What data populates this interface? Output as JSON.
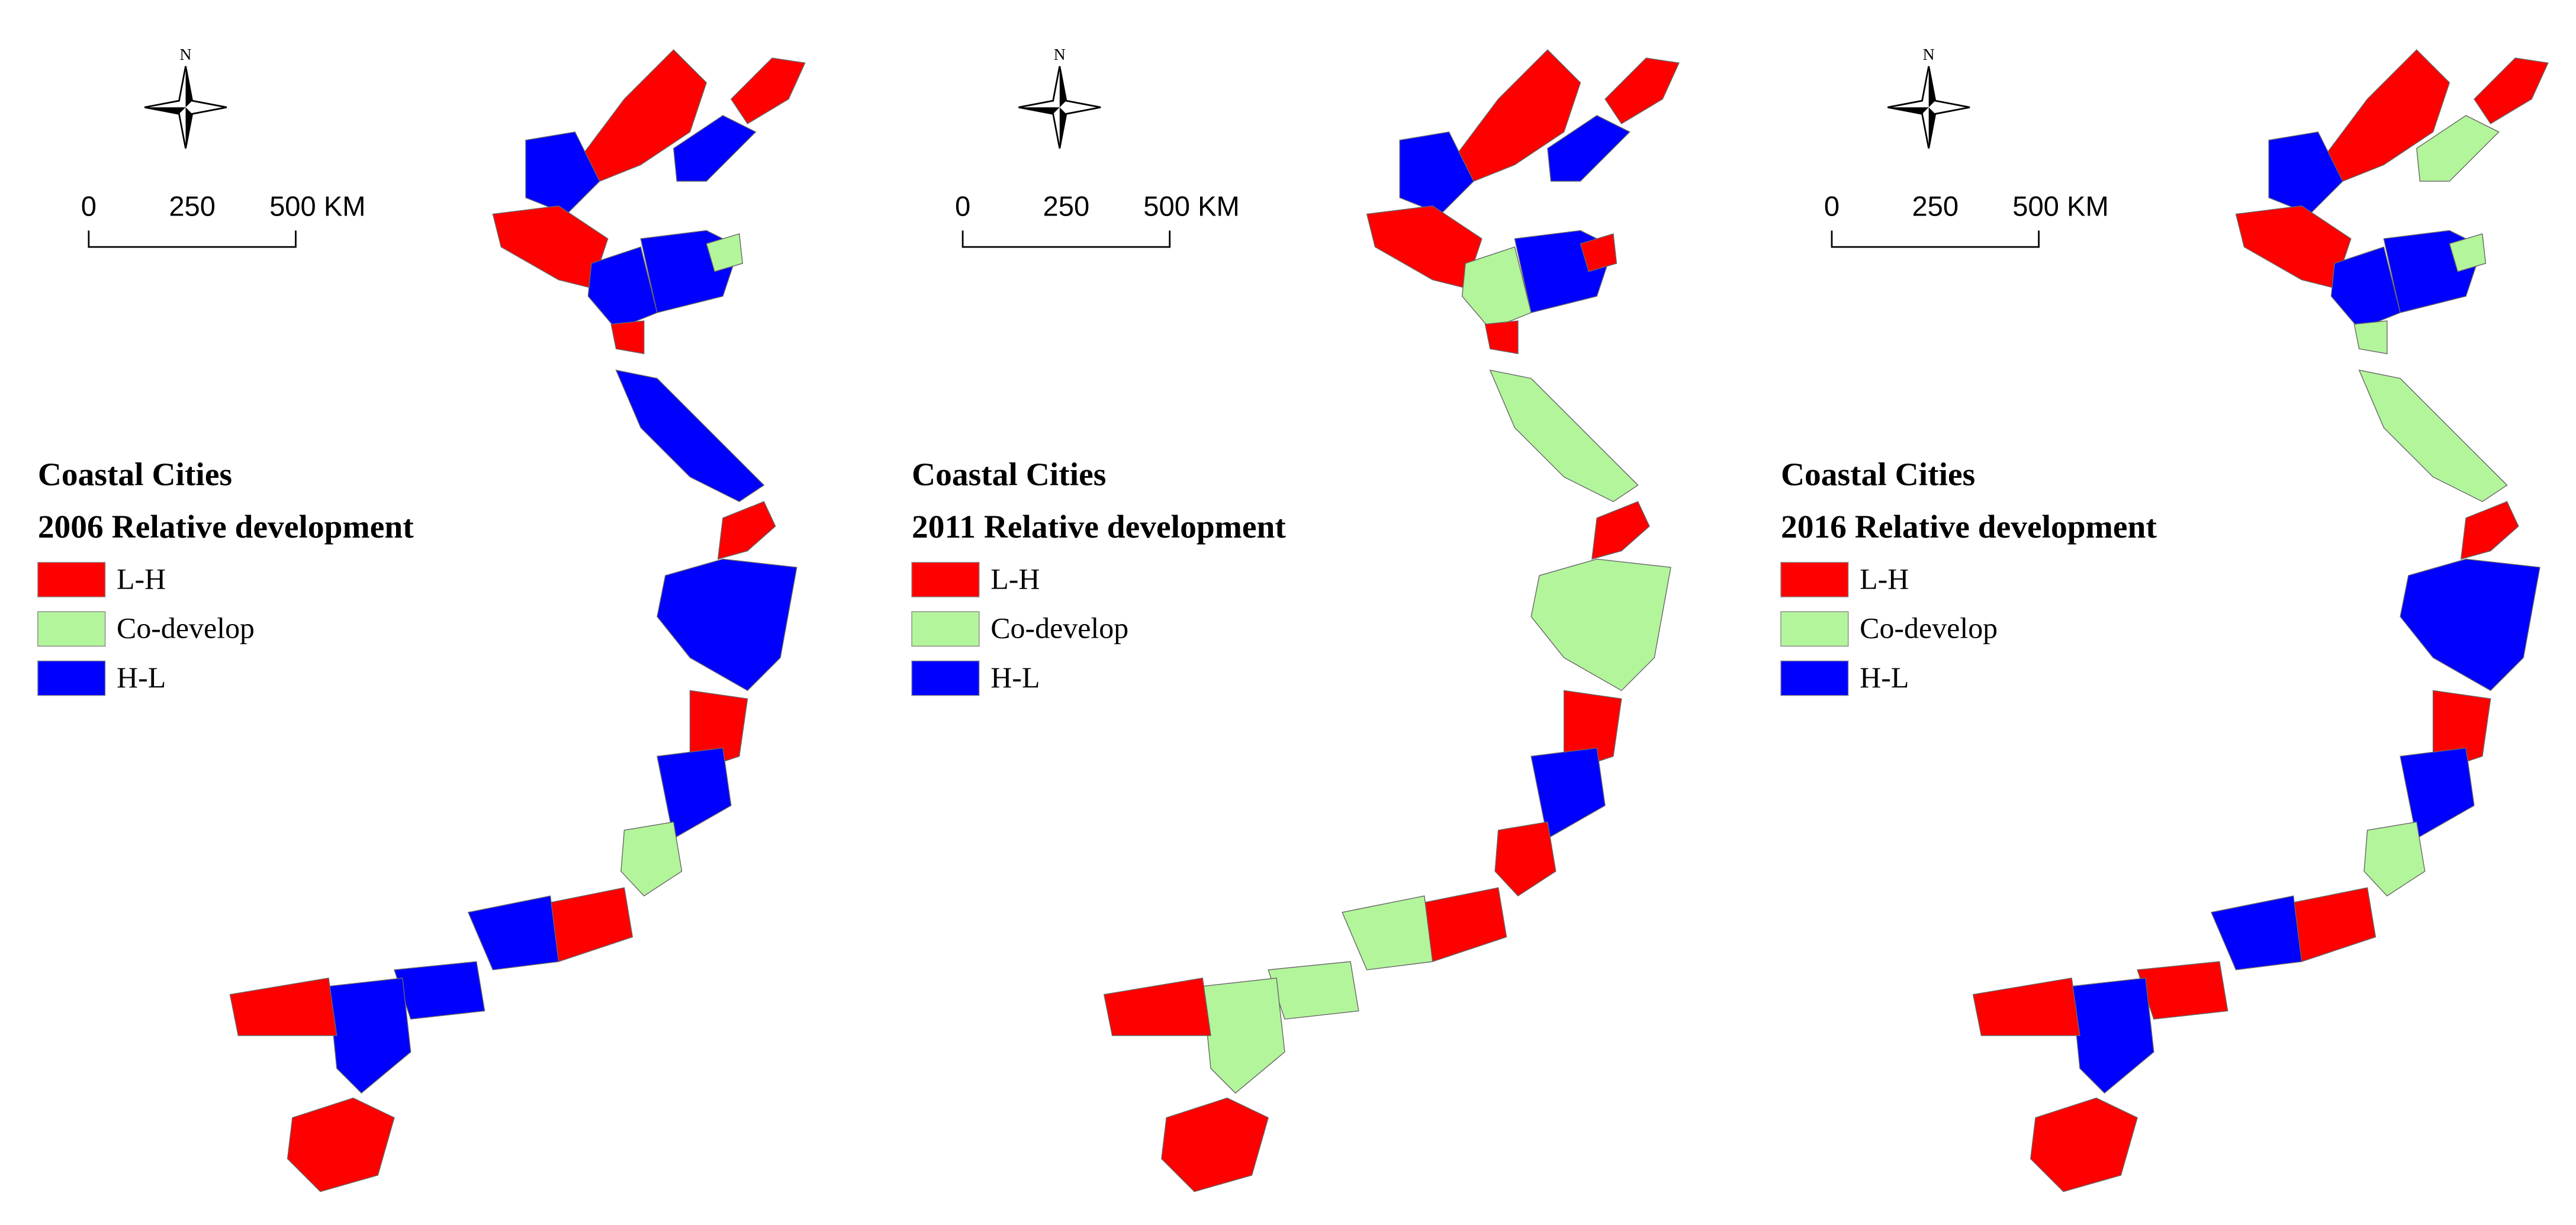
{
  "panels": [
    {
      "north_label": "N",
      "scale_labels": [
        "0",
        "250",
        "500 KM"
      ],
      "legend": {
        "title": "Coastal Cities",
        "subtitle": "2006 Relative development",
        "items": [
          {
            "label": "L-H",
            "color": "#ff0000"
          },
          {
            "label": "Co-develop",
            "color": "#b3f59b"
          },
          {
            "label": "H-L",
            "color": "#0000ff"
          }
        ]
      }
    },
    {
      "north_label": "N",
      "scale_labels": [
        "0",
        "250",
        "500 KM"
      ],
      "legend": {
        "title": "Coastal Cities",
        "subtitle": "2011 Relative development",
        "items": [
          {
            "label": "L-H",
            "color": "#ff0000"
          },
          {
            "label": "Co-develop",
            "color": "#b3f59b"
          },
          {
            "label": "H-L",
            "color": "#0000ff"
          }
        ]
      }
    },
    {
      "north_label": "N",
      "scale_labels": [
        "0",
        "250",
        "500 KM"
      ],
      "legend": {
        "title": "Coastal Cities",
        "subtitle": "2016 Relative development",
        "items": [
          {
            "label": "L-H",
            "color": "#ff0000"
          },
          {
            "label": "Co-develop",
            "color": "#b3f59b"
          },
          {
            "label": "H-L",
            "color": "#0000ff"
          }
        ]
      }
    }
  ]
}
